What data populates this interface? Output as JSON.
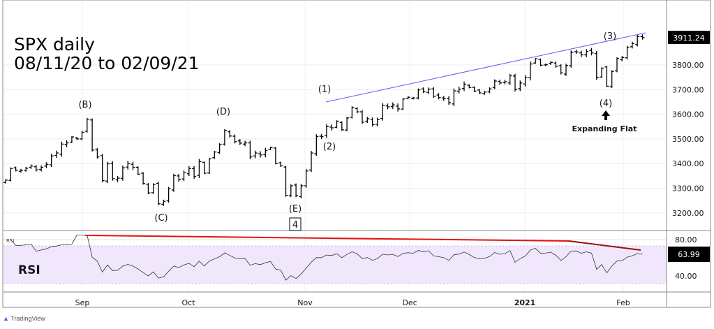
{
  "title_line1": "SPX daily",
  "title_line2": "08/11/20 to 02/09/21",
  "branding": "TradingView",
  "chart_data": {
    "type": "ohlc",
    "symbol": "SPX",
    "start_date": "2020-08-11",
    "end_date": "2021-02-09",
    "closes": [
      3333,
      3380,
      3373,
      3373,
      3381,
      3390,
      3375,
      3385,
      3397,
      3431,
      3443,
      3479,
      3484,
      3508,
      3500,
      3527,
      3580,
      3455,
      3427,
      3331,
      3399,
      3339,
      3341,
      3383,
      3401,
      3385,
      3357,
      3319,
      3281,
      3315,
      3237,
      3247,
      3298,
      3351,
      3335,
      3363,
      3380,
      3348,
      3408,
      3361,
      3419,
      3447,
      3477,
      3534,
      3512,
      3489,
      3483,
      3484,
      3427,
      3443,
      3435,
      3453,
      3465,
      3401,
      3391,
      3271,
      3310,
      3270,
      3310,
      3370,
      3443,
      3510,
      3509,
      3550,
      3545,
      3572,
      3537,
      3585,
      3627,
      3610,
      3568,
      3582,
      3558,
      3578,
      3636,
      3630,
      3638,
      3622,
      3662,
      3669,
      3666,
      3699,
      3692,
      3702,
      3673,
      3668,
      3663,
      3647,
      3695,
      3702,
      3722,
      3709,
      3694,
      3687,
      3690,
      3703,
      3735,
      3727,
      3732,
      3756,
      3701,
      3727,
      3748,
      3804,
      3825,
      3799,
      3801,
      3810,
      3795,
      3768,
      3798,
      3851,
      3853,
      3841,
      3855,
      3849,
      3750,
      3787,
      3714,
      3774,
      3826,
      3830,
      3871,
      3887,
      3915,
      3911
    ],
    "last_price": "3911.24",
    "y_ticks": [
      "3800.00",
      "3700.00",
      "3600.00",
      "3500.00",
      "3400.00",
      "3300.00",
      "3200.00"
    ],
    "x_ticks": [
      "Sep",
      "Oct",
      "Nov",
      "Dec",
      "2021",
      "Feb"
    ],
    "rsi": {
      "label": "RSI",
      "pane_title": "RSI",
      "period": 14,
      "last": "63.99",
      "ticks": [
        "80.00",
        "40.00"
      ],
      "band": [
        30,
        70
      ]
    },
    "wave_labels": [
      "(B)",
      "(C)",
      "(D)",
      "(E)",
      "4",
      "(1)",
      "(2)",
      "(3)",
      "(4)"
    ],
    "annotation": "Expanding Flat",
    "colors": {
      "trend": "#5b5bf0",
      "rsi_div": "#e81010",
      "rsi_div2": "#9a1010",
      "band": "#f1e7fd",
      "bars": "#000000"
    }
  }
}
